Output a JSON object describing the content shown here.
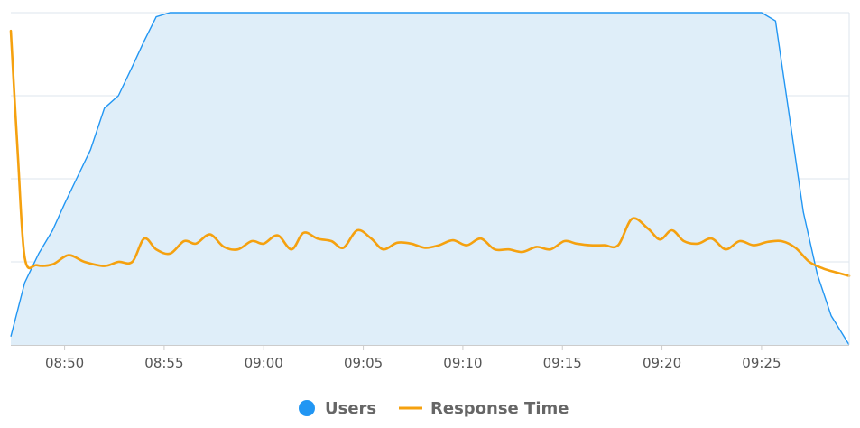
{
  "chart_data": {
    "type": "line",
    "x_ticks": [
      "08:50",
      "08:55",
      "09:00",
      "09:05",
      "09:10",
      "09:15",
      "09:20",
      "09:25"
    ],
    "x_tick_minutes": [
      50,
      55,
      60,
      65,
      70,
      75,
      80,
      85
    ],
    "xlim": [
      47.3,
      89.4
    ],
    "ylim": [
      0,
      4
    ],
    "grid": true,
    "legend_position": "bottom-center",
    "series": [
      {
        "name": "Users",
        "kind": "area",
        "color": "#2196f3",
        "fill": "#dfeef9",
        "legend_symbol": "circle",
        "x": [
          47.3,
          48.0,
          48.7,
          49.4,
          50.0,
          50.6,
          51.3,
          52.0,
          52.7,
          53.4,
          54.0,
          54.6,
          55.3,
          56.0,
          57,
          60,
          65,
          70,
          75,
          80,
          85.0,
          85.7,
          86.4,
          87.1,
          87.8,
          88.5,
          89.4
        ],
        "y": [
          0.1,
          0.75,
          1.1,
          1.38,
          1.7,
          2.0,
          2.35,
          2.85,
          3.0,
          3.35,
          3.66,
          3.95,
          4.0,
          4.0,
          4.0,
          4.0,
          4.0,
          4.0,
          4.0,
          4.0,
          4.0,
          3.9,
          2.75,
          1.6,
          0.85,
          0.35,
          0.0
        ]
      },
      {
        "name": "Response Time",
        "kind": "line",
        "color": "#f5a10f",
        "legend_symbol": "line",
        "x": [
          47.3,
          47.65,
          48.0,
          48.6,
          49.4,
          50.2,
          51.0,
          52.0,
          52.7,
          53.4,
          54.0,
          54.6,
          55.3,
          56.0,
          56.6,
          57.3,
          58.0,
          58.7,
          59.4,
          60.0,
          60.7,
          61.4,
          62.0,
          62.7,
          63.4,
          64.0,
          64.7,
          65.4,
          66.0,
          66.7,
          67.4,
          68.1,
          68.8,
          69.5,
          70.2,
          70.9,
          71.6,
          72.3,
          73.0,
          73.7,
          74.4,
          75.1,
          75.7,
          76.4,
          77.1,
          77.8,
          78.5,
          79.3,
          79.9,
          80.5,
          81.1,
          81.8,
          82.5,
          83.2,
          83.9,
          84.6,
          85.3,
          86.0,
          86.7,
          87.4,
          88.1,
          88.8,
          89.4
        ],
        "y": [
          3.78,
          2.3,
          1.05,
          0.96,
          0.97,
          1.08,
          1.0,
          0.95,
          1.0,
          1.0,
          1.28,
          1.15,
          1.1,
          1.25,
          1.22,
          1.33,
          1.18,
          1.15,
          1.25,
          1.22,
          1.32,
          1.15,
          1.35,
          1.28,
          1.25,
          1.17,
          1.38,
          1.28,
          1.15,
          1.23,
          1.22,
          1.17,
          1.2,
          1.26,
          1.2,
          1.28,
          1.15,
          1.15,
          1.12,
          1.18,
          1.15,
          1.25,
          1.22,
          1.2,
          1.2,
          1.2,
          1.52,
          1.4,
          1.27,
          1.38,
          1.25,
          1.22,
          1.28,
          1.15,
          1.25,
          1.2,
          1.24,
          1.25,
          1.17,
          1.0,
          0.92,
          0.87,
          0.83
        ]
      }
    ]
  }
}
